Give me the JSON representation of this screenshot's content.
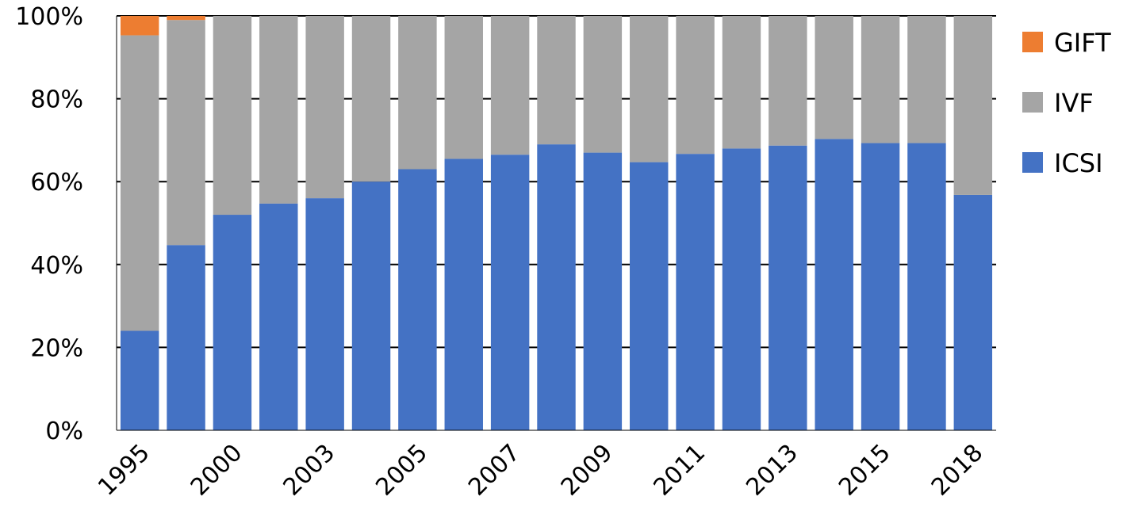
{
  "chart_data": {
    "type": "bar",
    "stacked": true,
    "categories": [
      "1995",
      "",
      "2000",
      "",
      "2003",
      "",
      "2005",
      "",
      "2007",
      "",
      "2009",
      "",
      "2011",
      "",
      "2013",
      "",
      "2015",
      "",
      "2018"
    ],
    "series": [
      {
        "name": "ICSI",
        "color": "#4472c4",
        "values": [
          24,
          44.7,
          52,
          54.7,
          56,
          60,
          63,
          65.5,
          66.5,
          69,
          67,
          64.7,
          66.7,
          68,
          68.7,
          70.3,
          69.3,
          69.3,
          56.8
        ]
      },
      {
        "name": "IVF",
        "color": "#a5a5a5",
        "values": [
          71.3,
          54.3,
          48,
          45.3,
          44,
          40,
          37,
          34.5,
          33.5,
          31,
          33,
          35.3,
          33.3,
          32,
          31.3,
          29.7,
          30.7,
          30.7,
          43.2
        ]
      },
      {
        "name": "GIFT",
        "color": "#ed7d31",
        "values": [
          4.7,
          1,
          0,
          0,
          0,
          0,
          0,
          0,
          0,
          0,
          0,
          0,
          0,
          0,
          0,
          0,
          0,
          0,
          0
        ]
      }
    ],
    "ylim": [
      0,
      100
    ],
    "yticks": [
      "0%",
      "20%",
      "40%",
      "60%",
      "80%",
      "100%"
    ],
    "grid": true,
    "legend_position": "right",
    "legend_order": [
      "GIFT",
      "IVF",
      "ICSI"
    ]
  }
}
